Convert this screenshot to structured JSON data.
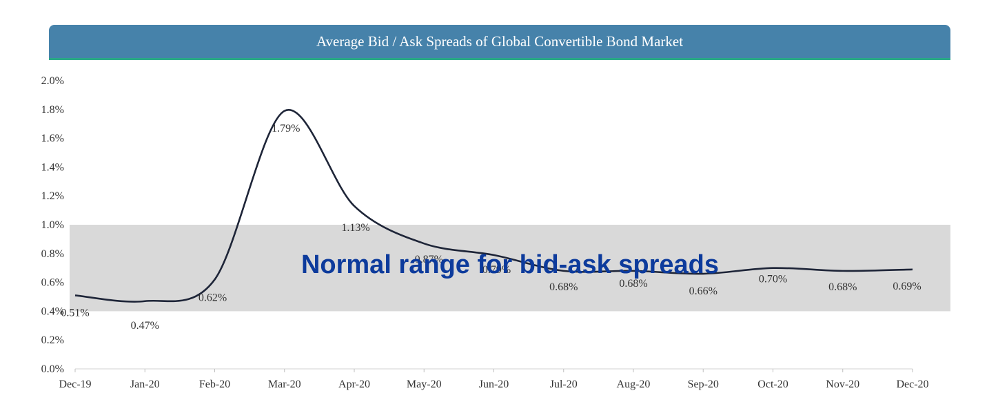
{
  "title": "Average Bid / Ask Spreads of Global Convertible Bond Market",
  "colors": {
    "title_bar": "#4682aa",
    "title_underline": "#2aa987",
    "line": "#1e2538",
    "band": "#d9d9d9",
    "band_text": "#0d3b9c"
  },
  "chart_data": {
    "type": "line",
    "title": "Average Bid / Ask Spreads of Global Convertible Bond Market",
    "xlabel": "",
    "ylabel": "",
    "categories": [
      "Dec-19",
      "Jan-20",
      "Feb-20",
      "Mar-20",
      "Apr-20",
      "May-20",
      "Jun-20",
      "Jul-20",
      "Aug-20",
      "Sep-20",
      "Oct-20",
      "Nov-20",
      "Dec-20"
    ],
    "series": [
      {
        "values": [
          0.51,
          0.47,
          0.62,
          1.79,
          1.13,
          0.87,
          0.79,
          0.68,
          0.68,
          0.66,
          0.7,
          0.68,
          0.69
        ],
        "labels": [
          "0.51%",
          "0.47%",
          "0.62%",
          "1.79%",
          "1.13%",
          "0.87%",
          "0.79%",
          "0.68%",
          "0.68%",
          "0.66%",
          "0.70%",
          "0.68%",
          "0.69%"
        ]
      }
    ],
    "ylim": [
      0,
      2.0
    ],
    "yticks": [
      "0.0%",
      "0.2%",
      "0.4%",
      "0.6%",
      "0.8%",
      "1.0%",
      "1.2%",
      "1.4%",
      "1.6%",
      "1.8%",
      "2.0%"
    ],
    "band": {
      "from": 0.4,
      "to": 1.0,
      "label": "Normal range for bid-ask spreads"
    },
    "grid": false,
    "legend": "none"
  }
}
